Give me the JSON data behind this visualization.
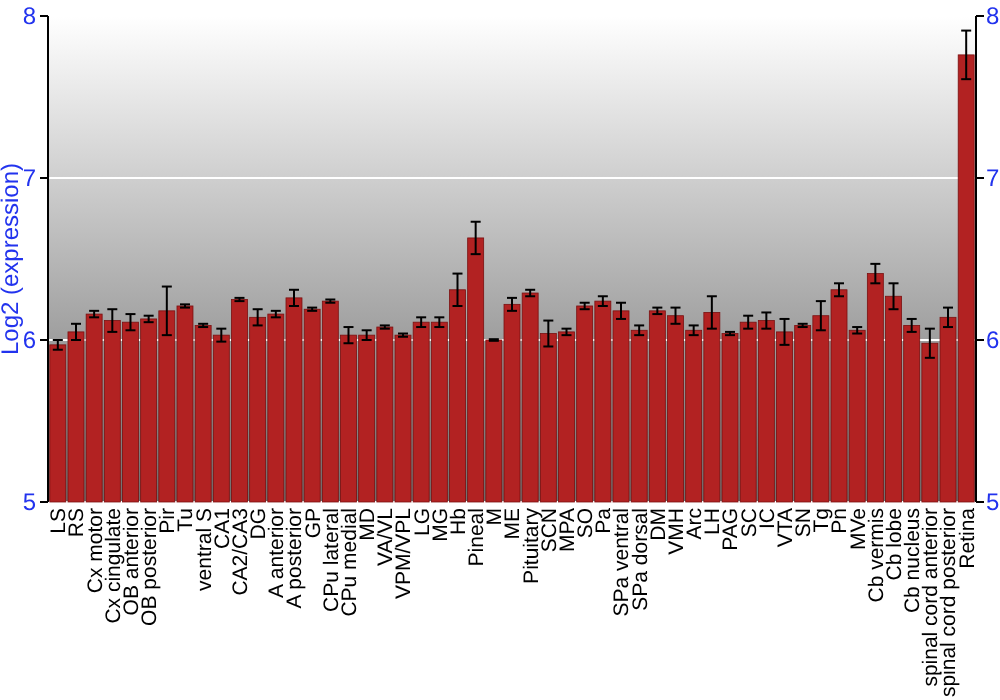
{
  "chart_data": {
    "type": "bar",
    "ylabel": "Log2 (expression)",
    "categories": [
      "LS",
      "RS",
      "Cx motor",
      "Cx cingulate",
      "OB anterior",
      "OB posterior",
      "Pir",
      "Tu",
      "ventral S",
      "CA1",
      "CA2/CA3",
      "DG",
      "A anterior",
      "A posterior",
      "GP",
      "CPu lateral",
      "CPu medial",
      "MD",
      "VA/VL",
      "VPM/VPL",
      "LG",
      "MG",
      "Hb",
      "Pineal",
      "M",
      "ME",
      "Pituitary",
      "SCN",
      "MPA",
      "SO",
      "Pa",
      "SPa ventral",
      "SPa dorsal",
      "DM",
      "VMH",
      "Arc",
      "LH",
      "PAG",
      "SC",
      "IC",
      "VTA",
      "SN",
      "Tg",
      "Pn",
      "MVe",
      "Cb vermis",
      "Cb lobe",
      "Cb nucleus",
      "spinal cord anterior",
      "spinal cord posterior",
      "Retina"
    ],
    "values": [
      5.97,
      6.05,
      6.16,
      6.12,
      6.11,
      6.13,
      6.18,
      6.21,
      6.09,
      6.03,
      6.25,
      6.14,
      6.16,
      6.26,
      6.19,
      6.24,
      6.03,
      6.03,
      6.08,
      6.03,
      6.11,
      6.11,
      6.31,
      6.63,
      6.0,
      6.22,
      6.29,
      6.04,
      6.05,
      6.21,
      6.24,
      6.18,
      6.06,
      6.18,
      6.15,
      6.06,
      6.17,
      6.04,
      6.11,
      6.12,
      6.05,
      6.09,
      6.15,
      6.31,
      6.06,
      6.41,
      6.27,
      6.09,
      5.98,
      6.14,
      7.76
    ],
    "errors": [
      0.03,
      0.05,
      0.02,
      0.07,
      0.05,
      0.02,
      0.15,
      0.01,
      0.01,
      0.04,
      0.01,
      0.05,
      0.02,
      0.05,
      0.01,
      0.01,
      0.05,
      0.03,
      0.01,
      0.01,
      0.03,
      0.03,
      0.1,
      0.1,
      0.005,
      0.04,
      0.02,
      0.08,
      0.02,
      0.02,
      0.03,
      0.05,
      0.03,
      0.02,
      0.05,
      0.03,
      0.1,
      0.01,
      0.04,
      0.05,
      0.08,
      0.01,
      0.09,
      0.04,
      0.02,
      0.06,
      0.08,
      0.04,
      0.09,
      0.06,
      0.15
    ],
    "color": "#b22222",
    "ylim": [
      5,
      8
    ],
    "yticks": [
      5,
      6,
      7,
      8
    ],
    "y2lim": [
      5,
      8
    ],
    "y2ticks": [
      5,
      6,
      7,
      8
    ],
    "grid": "y"
  }
}
